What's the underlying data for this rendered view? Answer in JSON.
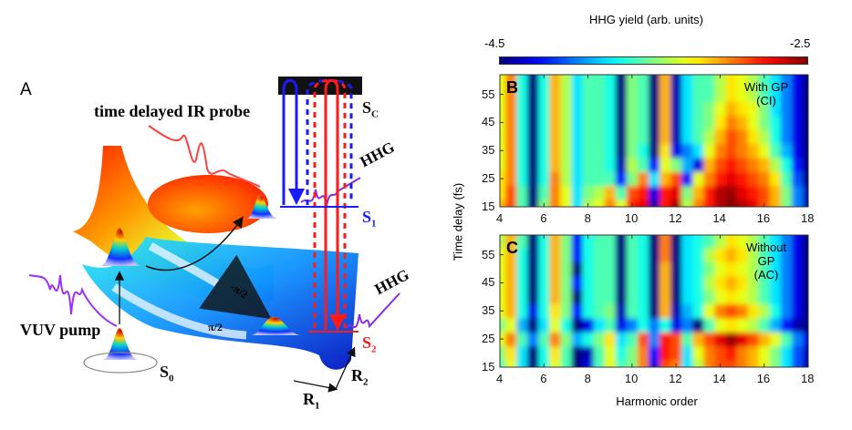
{
  "panel_a": {
    "label": "A",
    "probe_label": "time delayed IR probe",
    "pump_label": "VUV pump",
    "hhg_upper": "HHG",
    "hhg_lower": "HHG",
    "state_c": "S",
    "state_c_sub": "C",
    "state_1": "S",
    "state_1_sub": "1",
    "state_2": "S",
    "state_2_sub": "2",
    "state_0": "S",
    "state_0_sub": "0",
    "coord_1": "R",
    "coord_1_sub": "1",
    "coord_2": "R",
    "coord_2_sub": "2",
    "phase_neg": "-π/2",
    "phase_pos": "π/2",
    "colors": {
      "s1": "#1a1aff",
      "s2": "#ff1a1a",
      "hhg": "#8a2be2"
    }
  },
  "colorbar": {
    "title": "HHG yield (arb. units)",
    "min_label": "-4.5",
    "max_label": "-2.5",
    "colormap": "jet"
  },
  "chart_data": [
    {
      "type": "heatmap",
      "panel": "B",
      "annotation_line1": "With GP",
      "annotation_line2": "(CI)",
      "xlabel": "",
      "ylabel": "Time delay (fs)",
      "xlim": [
        4,
        18
      ],
      "ylim": [
        15,
        62
      ],
      "zlim": [
        -4.5,
        -2.5
      ],
      "xticks": [
        "4",
        "6",
        "8",
        "10",
        "12",
        "14",
        "16",
        "18"
      ],
      "yticks": [
        "15",
        "25",
        "35",
        "45",
        "55"
      ],
      "x": [
        4,
        4.5,
        5,
        5.5,
        6,
        6.5,
        7,
        7.5,
        8,
        8.5,
        9,
        9.5,
        10,
        10.5,
        11,
        11.5,
        12,
        12.5,
        13,
        13.5,
        14,
        14.5,
        15,
        15.5,
        16,
        16.5,
        17,
        17.5,
        18
      ],
      "y": [
        15,
        20,
        25,
        30,
        35,
        40,
        45,
        50,
        55,
        60
      ],
      "z": [
        [
          -3.1,
          -2.9,
          -3.6,
          -4.5,
          -3.5,
          -3.0,
          -3.3,
          -3.8,
          -3.4,
          -3.3,
          -3.0,
          -3.3,
          -2.8,
          -2.7,
          -4.4,
          -2.8,
          -2.6,
          -3.4,
          -3.0,
          -2.8,
          -2.6,
          -2.5,
          -2.6,
          -2.7,
          -2.9,
          -3.1,
          -3.5,
          -4.0,
          -4.4
        ],
        [
          -3.2,
          -2.9,
          -3.6,
          -4.5,
          -3.6,
          -3.0,
          -3.3,
          -3.8,
          -3.5,
          -3.4,
          -3.1,
          -3.6,
          -2.9,
          -2.8,
          -4.3,
          -2.8,
          -2.7,
          -3.5,
          -3.1,
          -2.8,
          -2.6,
          -2.55,
          -2.7,
          -2.8,
          -2.9,
          -3.1,
          -3.5,
          -4.0,
          -4.4
        ],
        [
          -3.2,
          -3.0,
          -3.7,
          -4.5,
          -3.7,
          -3.0,
          -3.4,
          -3.8,
          -3.6,
          -3.6,
          -3.6,
          -4.2,
          -3.5,
          -3.0,
          -3.8,
          -3.1,
          -2.9,
          -4.2,
          -3.3,
          -3.0,
          -2.8,
          -2.7,
          -2.8,
          -2.9,
          -3.0,
          -3.2,
          -3.6,
          -4.1,
          -4.5
        ],
        [
          -3.3,
          -3.0,
          -3.7,
          -4.5,
          -3.7,
          -3.1,
          -3.4,
          -3.8,
          -3.6,
          -3.6,
          -3.7,
          -4.4,
          -3.4,
          -3.6,
          -4.2,
          -3.3,
          -3.5,
          -3.9,
          -4.3,
          -3.1,
          -2.9,
          -2.8,
          -2.9,
          -3.0,
          -3.1,
          -3.4,
          -3.7,
          -4.2,
          -4.5
        ],
        [
          -3.3,
          -3.0,
          -3.7,
          -4.5,
          -3.7,
          -3.1,
          -3.4,
          -3.8,
          -3.6,
          -3.6,
          -3.7,
          -4.5,
          -3.5,
          -3.7,
          -4.5,
          -3.2,
          -4.3,
          -4.0,
          -3.8,
          -3.3,
          -3.0,
          -2.9,
          -3.0,
          -3.1,
          -3.3,
          -3.6,
          -3.9,
          -4.3,
          -4.5
        ],
        [
          -3.3,
          -3.0,
          -3.7,
          -4.5,
          -3.7,
          -3.1,
          -3.4,
          -3.8,
          -3.6,
          -3.6,
          -3.7,
          -4.5,
          -3.5,
          -3.6,
          -4.5,
          -3.1,
          -4.4,
          -3.8,
          -3.6,
          -3.4,
          -3.1,
          -2.9,
          -3.0,
          -3.2,
          -3.4,
          -3.7,
          -4.0,
          -4.3,
          -4.5
        ],
        [
          -3.3,
          -3.0,
          -3.7,
          -4.5,
          -3.7,
          -3.1,
          -3.4,
          -3.8,
          -3.6,
          -3.6,
          -3.7,
          -4.5,
          -3.5,
          -3.6,
          -4.5,
          -3.1,
          -4.4,
          -3.8,
          -3.6,
          -3.5,
          -3.2,
          -3.0,
          -3.1,
          -3.3,
          -3.5,
          -3.7,
          -4.0,
          -4.3,
          -4.5
        ],
        [
          -3.3,
          -3.0,
          -3.7,
          -4.5,
          -3.7,
          -3.1,
          -3.4,
          -3.8,
          -3.6,
          -3.6,
          -3.7,
          -4.5,
          -3.5,
          -3.6,
          -4.5,
          -3.1,
          -4.4,
          -3.8,
          -3.6,
          -3.5,
          -3.3,
          -3.1,
          -3.2,
          -3.3,
          -3.5,
          -3.8,
          -4.0,
          -4.3,
          -4.5
        ],
        [
          -3.3,
          -3.0,
          -3.7,
          -4.5,
          -3.7,
          -3.1,
          -3.4,
          -3.8,
          -3.6,
          -3.6,
          -3.7,
          -4.5,
          -3.5,
          -3.6,
          -4.5,
          -3.1,
          -4.4,
          -3.8,
          -3.6,
          -3.6,
          -3.4,
          -3.2,
          -3.3,
          -3.4,
          -3.6,
          -3.8,
          -4.0,
          -4.3,
          -4.5
        ],
        [
          -3.3,
          -3.0,
          -3.7,
          -4.5,
          -3.7,
          -3.1,
          -3.4,
          -3.8,
          -3.6,
          -3.6,
          -3.7,
          -4.5,
          -3.5,
          -3.6,
          -4.5,
          -3.1,
          -4.4,
          -3.8,
          -3.6,
          -3.6,
          -3.4,
          -3.2,
          -3.3,
          -3.4,
          -3.6,
          -3.8,
          -4.0,
          -4.3,
          -4.5
        ]
      ]
    },
    {
      "type": "heatmap",
      "panel": "C",
      "annotation_line1": "Without",
      "annotation_line2": "GP",
      "annotation_line3": "(AC)",
      "xlabel": "Harmonic order",
      "ylabel": "Time delay (fs)",
      "xlim": [
        4,
        18
      ],
      "ylim": [
        15,
        62
      ],
      "zlim": [
        -4.5,
        -2.5
      ],
      "xticks": [
        "4",
        "6",
        "8",
        "10",
        "12",
        "14",
        "16",
        "18"
      ],
      "yticks": [
        "15",
        "25",
        "35",
        "45",
        "55"
      ],
      "x": [
        4,
        4.5,
        5,
        5.5,
        6,
        6.5,
        7,
        7.5,
        8,
        8.5,
        9,
        9.5,
        10,
        10.5,
        11,
        11.5,
        12,
        12.5,
        13,
        13.5,
        14,
        14.5,
        15,
        15.5,
        16,
        16.5,
        17,
        17.5,
        18
      ],
      "y": [
        15,
        20,
        25,
        30,
        35,
        40,
        45,
        50,
        55,
        60
      ],
      "z": [
        [
          -3.6,
          -3.3,
          -3.8,
          -4.5,
          -3.7,
          -3.3,
          -3.6,
          -4.5,
          -4.3,
          -3.6,
          -3.3,
          -3.6,
          -3.5,
          -3.0,
          -4.3,
          -2.9,
          -3.0,
          -3.8,
          -3.4,
          -3.0,
          -2.9,
          -2.9,
          -3.0,
          -3.1,
          -3.3,
          -3.5,
          -3.8,
          -4.1,
          -4.4
        ],
        [
          -3.5,
          -3.2,
          -3.8,
          -4.5,
          -3.7,
          -3.2,
          -3.6,
          -4.5,
          -4.4,
          -3.6,
          -3.3,
          -3.7,
          -3.5,
          -3.0,
          -4.2,
          -2.8,
          -2.9,
          -3.8,
          -3.3,
          -3.0,
          -2.9,
          -2.8,
          -3.0,
          -3.1,
          -3.3,
          -3.5,
          -3.8,
          -4.1,
          -4.4
        ],
        [
          -3.3,
          -3.0,
          -3.6,
          -4.0,
          -3.6,
          -3.0,
          -3.5,
          -3.9,
          -3.7,
          -3.5,
          -3.2,
          -3.8,
          -3.6,
          -2.9,
          -4.0,
          -2.8,
          -2.9,
          -3.6,
          -3.1,
          -2.9,
          -2.7,
          -2.55,
          -2.7,
          -2.9,
          -3.1,
          -3.3,
          -3.6,
          -4.0,
          -4.3
        ],
        [
          -3.5,
          -3.3,
          -3.9,
          -4.5,
          -3.8,
          -3.3,
          -3.7,
          -4.5,
          -4.3,
          -3.8,
          -3.6,
          -4.3,
          -4.0,
          -3.7,
          -4.0,
          -3.7,
          -4.3,
          -4.0,
          -4.5,
          -3.6,
          -3.3,
          -3.2,
          -3.3,
          -3.4,
          -3.6,
          -3.9,
          -4.2,
          -4.4,
          -4.5
        ],
        [
          -3.3,
          -3.1,
          -3.7,
          -4.3,
          -3.7,
          -3.2,
          -3.5,
          -4.2,
          -3.7,
          -3.6,
          -3.5,
          -4.4,
          -3.6,
          -3.7,
          -4.5,
          -3.1,
          -4.4,
          -3.9,
          -3.7,
          -3.3,
          -3.0,
          -2.9,
          -3.0,
          -3.2,
          -3.4,
          -3.7,
          -4.0,
          -4.3,
          -4.5
        ],
        [
          -3.3,
          -3.1,
          -3.7,
          -4.5,
          -3.7,
          -3.1,
          -3.5,
          -4.5,
          -3.7,
          -3.6,
          -3.6,
          -4.5,
          -3.6,
          -3.7,
          -4.5,
          -3.1,
          -4.5,
          -3.8,
          -3.7,
          -3.5,
          -3.3,
          -3.2,
          -3.3,
          -3.4,
          -3.6,
          -3.8,
          -4.0,
          -4.3,
          -4.5
        ],
        [
          -3.3,
          -3.1,
          -3.7,
          -4.5,
          -3.7,
          -3.1,
          -3.5,
          -4.2,
          -3.7,
          -3.6,
          -3.6,
          -4.5,
          -3.6,
          -3.7,
          -4.5,
          -3.1,
          -4.5,
          -3.8,
          -3.7,
          -3.4,
          -3.2,
          -3.1,
          -3.2,
          -3.4,
          -3.6,
          -3.8,
          -4.0,
          -4.3,
          -4.5
        ],
        [
          -3.3,
          -3.1,
          -3.7,
          -4.5,
          -3.7,
          -3.1,
          -3.5,
          -4.5,
          -3.7,
          -3.6,
          -3.6,
          -4.5,
          -3.6,
          -3.7,
          -4.5,
          -3.1,
          -4.5,
          -3.8,
          -3.7,
          -3.5,
          -3.3,
          -3.2,
          -3.3,
          -3.4,
          -3.6,
          -3.8,
          -4.0,
          -4.3,
          -4.5
        ],
        [
          -3.3,
          -3.1,
          -3.7,
          -4.5,
          -3.7,
          -3.1,
          -3.5,
          -4.2,
          -3.7,
          -3.6,
          -3.6,
          -4.5,
          -3.6,
          -3.7,
          -4.5,
          -3.0,
          -4.5,
          -3.8,
          -3.7,
          -3.4,
          -3.2,
          -3.1,
          -3.2,
          -3.4,
          -3.6,
          -3.8,
          -4.0,
          -4.3,
          -4.5
        ],
        [
          -3.4,
          -3.1,
          -3.6,
          -4.5,
          -3.7,
          -3.1,
          -3.5,
          -4.2,
          -3.7,
          -3.6,
          -3.6,
          -4.5,
          -3.6,
          -3.7,
          -4.5,
          -3.0,
          -4.5,
          -3.8,
          -3.7,
          -3.6,
          -3.4,
          -3.2,
          -3.3,
          -3.4,
          -3.6,
          -3.8,
          -4.0,
          -4.3,
          -4.5
        ]
      ]
    }
  ]
}
